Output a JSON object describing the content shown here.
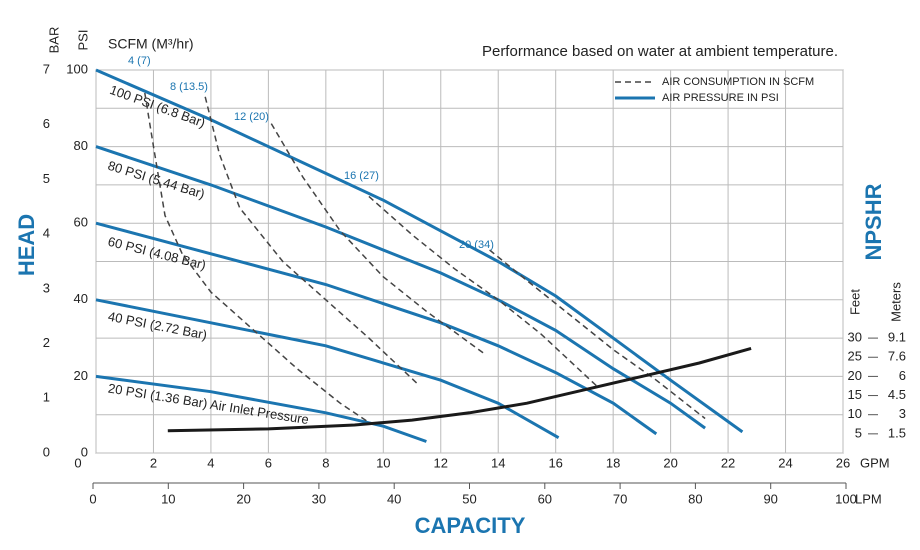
{
  "chart_data": {
    "type": "line",
    "title": "Performance based on water at ambient temperature.",
    "x_label": "CAPACITY",
    "y_label": "HEAD",
    "y3_label": "NPSHR",
    "x_unit": "GPM",
    "x2_unit": "LPM",
    "y_unit": "PSI",
    "y2_unit": "BAR",
    "y3_unit": "Feet",
    "y3_unit_meters": "Meters",
    "scfm_label": "SCFM (M³/hr)",
    "legend": [
      {
        "name": "AIR CONSUMPTION IN SCFM",
        "color": "#444444",
        "dash": true
      },
      {
        "name": "AIR PRESSURE IN PSI",
        "color": "#1b75b0",
        "dash": false
      }
    ],
    "grid": true,
    "xlim": [
      0,
      26
    ],
    "xticks": [
      0,
      2,
      4,
      6,
      8,
      10,
      12,
      14,
      16,
      18,
      20,
      22,
      24,
      26
    ],
    "x2lim": [
      0,
      100
    ],
    "x2ticks": [
      0,
      10,
      20,
      30,
      40,
      50,
      60,
      70,
      80,
      90,
      100
    ],
    "ylim": [
      0,
      100
    ],
    "yticks": [
      0,
      20,
      40,
      60,
      80,
      100
    ],
    "yminor": [
      10,
      30,
      50,
      70,
      90
    ],
    "y2lim": [
      0,
      7
    ],
    "y2ticks": [
      0,
      1,
      2,
      3,
      4,
      5,
      6,
      7
    ],
    "y3lim": [
      0,
      100
    ],
    "y3ticks": [
      5,
      10,
      15,
      20,
      25,
      30
    ],
    "y3ticks_meters": [
      "1.5",
      "3",
      "4.5",
      "6",
      "7.6",
      "9.1"
    ],
    "series": [
      {
        "label": "100 PSI (6.8 Bar)",
        "color": "#1b75b0",
        "dash": false,
        "axis": "y",
        "x": [
          0,
          4,
          8,
          10,
          12,
          14,
          16,
          18,
          20,
          22.5
        ],
        "values": [
          100,
          87,
          73,
          66,
          58,
          50,
          41,
          30,
          19,
          5.5
        ]
      },
      {
        "label": "80 PSI (5.44 Bar)",
        "color": "#1b75b0",
        "dash": false,
        "axis": "y",
        "x": [
          0,
          4,
          8,
          12,
          14,
          16,
          18,
          20,
          21.2
        ],
        "values": [
          80,
          70,
          59,
          47,
          40,
          32,
          22,
          13,
          6.5
        ]
      },
      {
        "label": "60 PSI (4.08 Bar)",
        "color": "#1b75b0",
        "dash": false,
        "axis": "y",
        "x": [
          0,
          4,
          8,
          12,
          14,
          16,
          18,
          19.5
        ],
        "values": [
          60,
          52,
          44,
          34,
          28,
          21,
          13,
          5
        ]
      },
      {
        "label": "40 PSI (2.72 Bar)",
        "color": "#1b75b0",
        "dash": false,
        "axis": "y",
        "x": [
          0,
          4,
          8,
          12,
          14,
          16.1
        ],
        "values": [
          40,
          34,
          28,
          19,
          13,
          4
        ]
      },
      {
        "label": "20 PSI (1.36 Bar) Air Inlet Pressure",
        "color": "#1b75b0",
        "dash": false,
        "axis": "y",
        "x": [
          0,
          4,
          8,
          10,
          11.5
        ],
        "values": [
          20,
          16,
          10.5,
          7,
          3
        ]
      },
      {
        "label": "4 (7)",
        "color": "#444444",
        "dash": true,
        "axis": "y",
        "x": [
          1.7,
          2,
          2.4,
          3,
          4,
          5.5,
          7,
          8.5,
          9.5
        ],
        "values": [
          94,
          80,
          62,
          52,
          42,
          32,
          22,
          13,
          8
        ]
      },
      {
        "label": "8 (13.5)",
        "color": "#444444",
        "dash": true,
        "axis": "y",
        "x": [
          3.8,
          4.3,
          5,
          6.5,
          8,
          9.5,
          11.2
        ],
        "values": [
          93,
          78,
          64,
          50,
          40,
          30,
          18
        ]
      },
      {
        "label": "12 (20)",
        "color": "#444444",
        "dash": true,
        "axis": "y",
        "x": [
          6.1,
          7.2,
          8.5,
          10,
          11.5,
          13.5
        ],
        "values": [
          86,
          72,
          58,
          46,
          37,
          26
        ]
      },
      {
        "label": "16 (27)",
        "color": "#444444",
        "dash": true,
        "axis": "y",
        "x": [
          9.5,
          11,
          12.5,
          14,
          15.5,
          17.5
        ],
        "values": [
          67,
          57,
          48,
          40,
          31,
          17
        ]
      },
      {
        "label": "20 (34)",
        "color": "#444444",
        "dash": true,
        "axis": "y",
        "x": [
          13.7,
          15,
          16.5,
          18,
          19.5,
          21.2
        ],
        "values": [
          53,
          45,
          36,
          27,
          19,
          9
        ]
      },
      {
        "color": "#1a1a1a",
        "dash": false,
        "axis": "y3",
        "x": [
          2.5,
          6,
          9,
          11,
          13,
          15,
          17,
          19,
          21,
          22.8
        ],
        "values": [
          5.8,
          6.3,
          7.3,
          8.6,
          10.5,
          13,
          16.5,
          20,
          23.5,
          27.3
        ]
      }
    ]
  }
}
